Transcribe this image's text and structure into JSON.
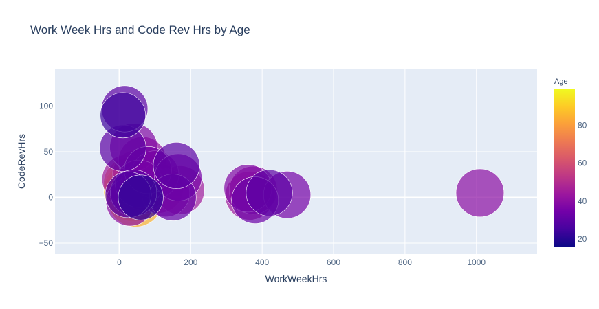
{
  "chart_data": {
    "type": "scatter",
    "title": "Work Week Hrs and Code Rev Hrs by Age",
    "xlabel": "WorkWeekHrs",
    "ylabel": "CodeRevHrs",
    "xlim": [
      -180,
      1170
    ],
    "ylim": [
      -62,
      141
    ],
    "xticks": [
      0,
      200,
      400,
      600,
      800,
      1000
    ],
    "yticks": [
      -50,
      0,
      50,
      100
    ],
    "grid": true,
    "bubble_size_encoding": "Age",
    "colorbar": {
      "title": "Age",
      "range": [
        16,
        99
      ],
      "ticks": [
        20,
        40,
        60,
        80
      ],
      "colorscale": [
        "#0d0887",
        "#46039f",
        "#7201a8",
        "#9c179e",
        "#bd3786",
        "#d8576b",
        "#ed7953",
        "#fb9f3a",
        "#fdca26",
        "#f0f921"
      ]
    },
    "points": [
      {
        "x": 40,
        "y": 5,
        "age": 99
      },
      {
        "x": 35,
        "y": 8,
        "age": 90
      },
      {
        "x": 45,
        "y": -2,
        "age": 85
      },
      {
        "x": 30,
        "y": 15,
        "age": 70
      },
      {
        "x": 60,
        "y": 10,
        "age": 60
      },
      {
        "x": 90,
        "y": 18,
        "age": 55
      },
      {
        "x": 110,
        "y": 10,
        "age": 50
      },
      {
        "x": 50,
        "y": 25,
        "age": 48
      },
      {
        "x": 20,
        "y": 20,
        "age": 45
      },
      {
        "x": 65,
        "y": 40,
        "age": 42
      },
      {
        "x": 40,
        "y": 55,
        "age": 38
      },
      {
        "x": 10,
        "y": 54,
        "age": 30
      },
      {
        "x": 80,
        "y": 30,
        "age": 35
      },
      {
        "x": 15,
        "y": 97,
        "age": 30
      },
      {
        "x": 10,
        "y": 90,
        "age": 24
      },
      {
        "x": 40,
        "y": 5,
        "age": 30
      },
      {
        "x": 60,
        "y": 0,
        "age": 22
      },
      {
        "x": 30,
        "y": -5,
        "age": 40
      },
      {
        "x": 55,
        "y": 15,
        "age": 36
      },
      {
        "x": 25,
        "y": 3,
        "age": 28
      },
      {
        "x": 160,
        "y": 35,
        "age": 30
      },
      {
        "x": 165,
        "y": 22,
        "age": 35
      },
      {
        "x": 170,
        "y": 8,
        "age": 45
      },
      {
        "x": 150,
        "y": 0,
        "age": 32
      },
      {
        "x": 130,
        "y": 5,
        "age": 40
      },
      {
        "x": 100,
        "y": 25,
        "age": 38
      },
      {
        "x": 70,
        "y": 12,
        "age": 42
      },
      {
        "x": 420,
        "y": 5,
        "age": 30
      },
      {
        "x": 470,
        "y": 3,
        "age": 35
      },
      {
        "x": 375,
        "y": 8,
        "age": 40
      },
      {
        "x": 365,
        "y": 2,
        "age": 45
      },
      {
        "x": 380,
        "y": -3,
        "age": 33
      },
      {
        "x": 360,
        "y": 10,
        "age": 38
      },
      {
        "x": 1010,
        "y": 5,
        "age": 40
      }
    ]
  }
}
